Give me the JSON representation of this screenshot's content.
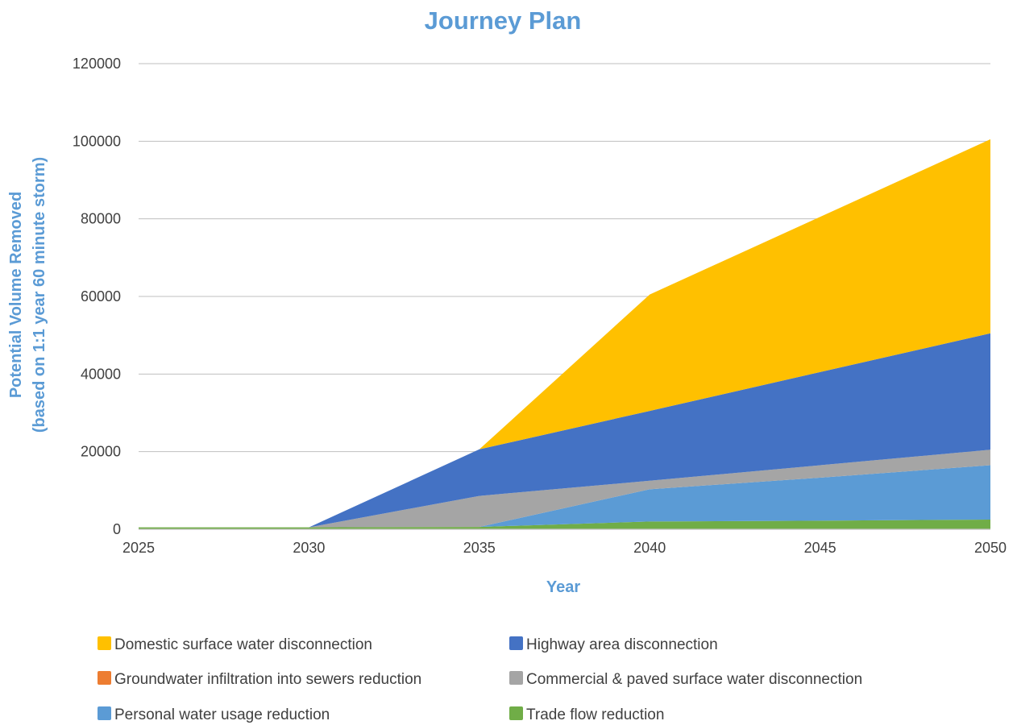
{
  "chart_data": {
    "type": "area",
    "stacked": true,
    "title": "Journey Plan",
    "xlabel": "Year",
    "ylabel_line1": "Potential Volume Removed",
    "ylabel_line2": "(based on  1:1 year 60 minute storm)",
    "x": [
      2025,
      2030,
      2035,
      2040,
      2045,
      2050
    ],
    "xlim": [
      2025,
      2050
    ],
    "ylim": [
      0,
      120000
    ],
    "y_ticks": [
      0,
      20000,
      40000,
      60000,
      80000,
      100000,
      120000
    ],
    "grid": true,
    "legend_position": "bottom",
    "series": [
      {
        "name": "Trade flow reduction",
        "color": "#70ad47",
        "values": [
          500,
          500,
          600,
          2000,
          2200,
          2500
        ]
      },
      {
        "name": "Groundwater infiltration into sewers reduction",
        "color": "#ed7d31",
        "values": [
          0,
          0,
          0,
          0,
          0,
          0
        ]
      },
      {
        "name": "Personal water usage reduction",
        "color": "#5b9bd5",
        "values": [
          0,
          0,
          0,
          8300,
          11100,
          14000
        ]
      },
      {
        "name": "Commercial & paved surface water disconnection",
        "color": "#a5a5a5",
        "values": [
          0,
          0,
          8000,
          2200,
          3200,
          4000
        ]
      },
      {
        "name": "Highway area disconnection",
        "color": "#4472c4",
        "values": [
          0,
          0,
          12000,
          18000,
          24000,
          30000
        ]
      },
      {
        "name": "Domestic surface water disconnection",
        "color": "#ffc000",
        "values": [
          0,
          0,
          0,
          30000,
          40000,
          50000
        ]
      }
    ],
    "legend_order": [
      "Domestic surface water disconnection",
      "Highway area disconnection",
      "Groundwater infiltration into sewers reduction",
      "Commercial & paved surface water disconnection",
      "Personal water usage reduction",
      "Trade flow reduction"
    ]
  }
}
